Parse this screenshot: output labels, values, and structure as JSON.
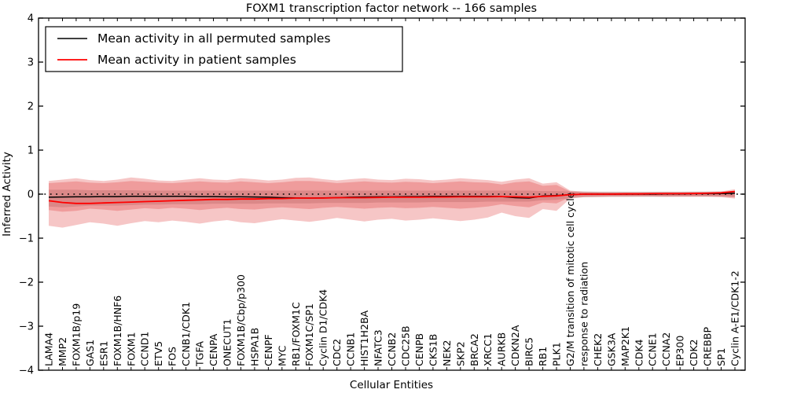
{
  "figure": {
    "title": "FOXM1 transcription factor network -- 166 samples",
    "xlabel": "Cellular Entities",
    "ylabel": "Inferred Activity"
  },
  "legend": {
    "entries": [
      {
        "label": "Mean activity in all permuted samples",
        "color": "#000000"
      },
      {
        "label": "Mean activity in patient samples",
        "color": "#ff0000"
      }
    ]
  },
  "chart_data": {
    "type": "line",
    "title": "FOXM1 transcription factor network -- 166 samples",
    "xlabel": "Cellular Entities",
    "ylabel": "Inferred Activity",
    "ylim": [
      -4,
      4
    ],
    "yticks": [
      -4,
      -3,
      -2,
      -1,
      0,
      1,
      2,
      3,
      4
    ],
    "ytick_labels": [
      "−4",
      "−3",
      "−2",
      "−1",
      "0",
      "1",
      "2",
      "3",
      "4"
    ],
    "grid": false,
    "legend_position": "upper left",
    "zero_line": {
      "y": 0,
      "style": "dotted",
      "color": "#000000"
    },
    "categories": [
      "LAMA4",
      "MMP2",
      "FOXM1B/p19",
      "GAS1",
      "ESR1",
      "FOXM1B/HNF6",
      "FOXM1",
      "CCND1",
      "ETV5",
      "FOS",
      "CCNB1/CDK1",
      "TGFA",
      "CENPA",
      "ONECUT1",
      "FOXM1B/Cbp/p300",
      "HSPA1B",
      "CENPF",
      "MYC",
      "RB1/FOXM1C",
      "FOXM1C/SP1",
      "Cyclin D1/CDK4",
      "CDC2",
      "CCNB1",
      "HIST1H2BA",
      "NFATC3",
      "CCNB2",
      "CDC25B",
      "CENPB",
      "CKS1B",
      "NEK2",
      "SKP2",
      "BRCA2",
      "XRCC1",
      "AURKB",
      "CDKN2A",
      "BIRC5",
      "RB1",
      "PLK1",
      "G2/M transition of mitotic cell cycle",
      "response to radiation",
      "CHEK2",
      "GSK3A",
      "MAP2K1",
      "CDK4",
      "CCNE1",
      "CCNA2",
      "EP300",
      "CDK2",
      "CREBBP",
      "SP1",
      "Cyclin A-E1/CDK1-2"
    ],
    "series": [
      {
        "name": "Mean activity in all permuted samples",
        "color": "#000000",
        "width": 1.5,
        "values": [
          -0.07,
          -0.065,
          -0.06,
          -0.06,
          -0.055,
          -0.055,
          -0.05,
          -0.05,
          -0.05,
          -0.05,
          -0.05,
          -0.055,
          -0.055,
          -0.06,
          -0.06,
          -0.065,
          -0.07,
          -0.08,
          -0.085,
          -0.09,
          -0.085,
          -0.08,
          -0.07,
          -0.065,
          -0.06,
          -0.06,
          -0.055,
          -0.055,
          -0.05,
          -0.05,
          -0.05,
          -0.05,
          -0.05,
          -0.055,
          -0.08,
          -0.09,
          -0.04,
          -0.03,
          -0.01,
          0.0,
          0.0,
          0.0,
          0.0,
          0.0,
          0.0,
          0.005,
          0.005,
          0.01,
          0.01,
          0.015,
          0.02
        ]
      },
      {
        "name": "Mean activity in patient samples",
        "color": "#ff0000",
        "width": 1.8,
        "values": [
          -0.15,
          -0.19,
          -0.21,
          -0.21,
          -0.2,
          -0.19,
          -0.18,
          -0.17,
          -0.16,
          -0.15,
          -0.14,
          -0.13,
          -0.12,
          -0.12,
          -0.11,
          -0.11,
          -0.1,
          -0.1,
          -0.09,
          -0.09,
          -0.09,
          -0.08,
          -0.08,
          -0.08,
          -0.075,
          -0.07,
          -0.07,
          -0.07,
          -0.065,
          -0.065,
          -0.06,
          -0.06,
          -0.06,
          -0.055,
          -0.06,
          -0.07,
          -0.05,
          -0.04,
          -0.01,
          0.0,
          0.0,
          0.0,
          0.005,
          0.005,
          0.01,
          0.01,
          0.01,
          0.015,
          0.02,
          0.03,
          0.06
        ]
      }
    ],
    "bands": [
      {
        "name": "permuted-std-band",
        "color": "rgba(0,0,0,0.15)",
        "upper": [
          0.1,
          0.1,
          0.1,
          0.09,
          0.09,
          0.09,
          0.09,
          0.08,
          0.08,
          0.08,
          0.08,
          0.08,
          0.08,
          0.08,
          0.08,
          0.08,
          0.08,
          0.08,
          0.08,
          0.08,
          0.08,
          0.08,
          0.08,
          0.08,
          0.08,
          0.08,
          0.08,
          0.08,
          0.08,
          0.08,
          0.08,
          0.08,
          0.08,
          0.08,
          0.08,
          0.08,
          0.07,
          0.07,
          0.06,
          0.06,
          0.055,
          0.055,
          0.055,
          0.055,
          0.055,
          0.055,
          0.055,
          0.06,
          0.06,
          0.06,
          0.065
        ],
        "lower": [
          -0.28,
          -0.3,
          -0.28,
          -0.26,
          -0.26,
          -0.26,
          -0.25,
          -0.24,
          -0.24,
          -0.23,
          -0.23,
          -0.23,
          -0.22,
          -0.22,
          -0.22,
          -0.22,
          -0.21,
          -0.21,
          -0.21,
          -0.21,
          -0.2,
          -0.2,
          -0.2,
          -0.2,
          -0.19,
          -0.19,
          -0.19,
          -0.19,
          -0.18,
          -0.18,
          -0.18,
          -0.18,
          -0.17,
          -0.17,
          -0.17,
          -0.17,
          -0.14,
          -0.13,
          -0.09,
          -0.07,
          -0.065,
          -0.06,
          -0.06,
          -0.06,
          -0.06,
          -0.06,
          -0.055,
          -0.055,
          -0.055,
          -0.055,
          -0.06
        ]
      },
      {
        "name": "patient-outer-band",
        "color": "rgba(222,45,45,0.27)",
        "upper": [
          0.3,
          0.33,
          0.36,
          0.32,
          0.3,
          0.33,
          0.38,
          0.35,
          0.31,
          0.3,
          0.33,
          0.36,
          0.33,
          0.32,
          0.36,
          0.34,
          0.31,
          0.33,
          0.37,
          0.38,
          0.34,
          0.31,
          0.34,
          0.36,
          0.33,
          0.32,
          0.35,
          0.34,
          0.31,
          0.33,
          0.36,
          0.34,
          0.32,
          0.28,
          0.33,
          0.36,
          0.24,
          0.27,
          0.08,
          0.055,
          0.05,
          0.05,
          0.045,
          0.045,
          0.045,
          0.05,
          0.05,
          0.05,
          0.055,
          0.06,
          0.11
        ],
        "lower": [
          -0.72,
          -0.76,
          -0.7,
          -0.64,
          -0.67,
          -0.72,
          -0.66,
          -0.61,
          -0.64,
          -0.6,
          -0.63,
          -0.67,
          -0.62,
          -0.59,
          -0.64,
          -0.66,
          -0.61,
          -0.57,
          -0.6,
          -0.63,
          -0.59,
          -0.54,
          -0.58,
          -0.62,
          -0.58,
          -0.56,
          -0.6,
          -0.58,
          -0.55,
          -0.58,
          -0.61,
          -0.58,
          -0.53,
          -0.42,
          -0.5,
          -0.54,
          -0.34,
          -0.38,
          -0.1,
          -0.07,
          -0.065,
          -0.06,
          -0.06,
          -0.055,
          -0.055,
          -0.06,
          -0.06,
          -0.06,
          -0.06,
          -0.07,
          -0.1
        ]
      },
      {
        "name": "patient-inner-band",
        "color": "rgba(222,45,45,0.27)",
        "upper": [
          0.25,
          0.27,
          0.29,
          0.26,
          0.25,
          0.27,
          0.3,
          0.28,
          0.26,
          0.25,
          0.27,
          0.29,
          0.27,
          0.26,
          0.29,
          0.27,
          0.25,
          0.27,
          0.3,
          0.3,
          0.28,
          0.25,
          0.27,
          0.29,
          0.27,
          0.26,
          0.28,
          0.27,
          0.25,
          0.27,
          0.29,
          0.27,
          0.26,
          0.22,
          0.27,
          0.29,
          0.19,
          0.21,
          0.06,
          0.04,
          0.04,
          0.035,
          0.035,
          0.035,
          0.035,
          0.04,
          0.04,
          0.04,
          0.04,
          0.045,
          0.08
        ],
        "lower": [
          -0.36,
          -0.4,
          -0.38,
          -0.33,
          -0.35,
          -0.38,
          -0.35,
          -0.32,
          -0.34,
          -0.31,
          -0.33,
          -0.36,
          -0.33,
          -0.31,
          -0.34,
          -0.35,
          -0.32,
          -0.3,
          -0.32,
          -0.34,
          -0.31,
          -0.29,
          -0.31,
          -0.33,
          -0.31,
          -0.3,
          -0.32,
          -0.31,
          -0.29,
          -0.31,
          -0.33,
          -0.31,
          -0.28,
          -0.23,
          -0.27,
          -0.3,
          -0.19,
          -0.21,
          -0.07,
          -0.05,
          -0.045,
          -0.04,
          -0.04,
          -0.04,
          -0.04,
          -0.045,
          -0.045,
          -0.045,
          -0.045,
          -0.05,
          -0.075
        ]
      }
    ]
  }
}
